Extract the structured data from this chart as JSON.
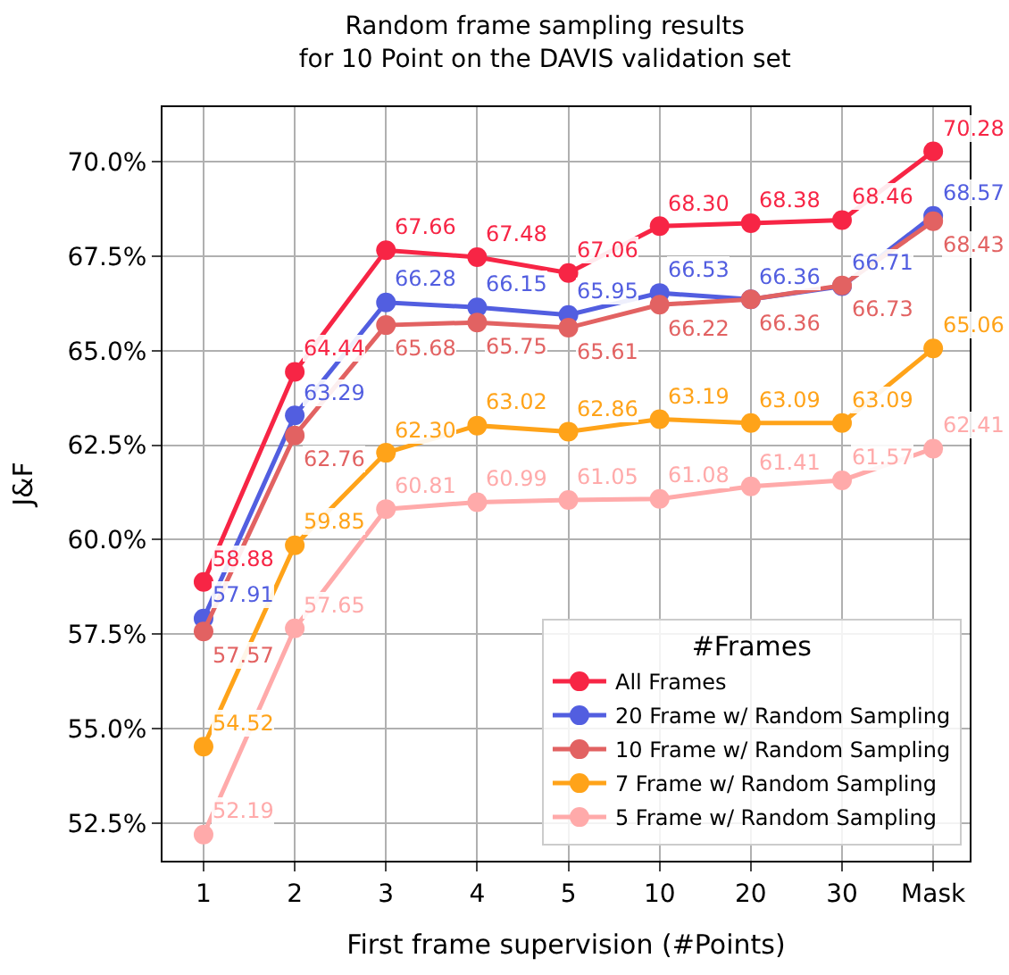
{
  "chart_data": {
    "type": "line",
    "title": "Random frame sampling results\nfor 10 Point on the DAVIS validation set",
    "xlabel": "First frame supervision (#Points)",
    "ylabel": "J&F",
    "categories": [
      "1",
      "2",
      "3",
      "4",
      "5",
      "10",
      "20",
      "30",
      "Mask"
    ],
    "series": [
      {
        "name": "All Frames",
        "color": "#f72545",
        "values": [
          58.88,
          64.44,
          67.66,
          67.48,
          67.06,
          68.3,
          68.38,
          68.46,
          70.28
        ],
        "value_labels": [
          "58.88",
          "64.44",
          "67.66",
          "67.48",
          "67.06",
          "68.30",
          "68.38",
          "68.46",
          "70.28"
        ]
      },
      {
        "name": "20 Frame w/ Random Sampling",
        "color": "#525ee0",
        "values": [
          57.91,
          63.29,
          66.28,
          66.15,
          65.95,
          66.53,
          66.36,
          66.71,
          68.57
        ],
        "value_labels": [
          "57.91",
          "63.29",
          "66.28",
          "66.15",
          "65.95",
          "66.53",
          "66.36",
          "66.71",
          "68.57"
        ]
      },
      {
        "name": "10 Frame w/ Random Sampling",
        "color": "#e26262",
        "values": [
          57.57,
          62.76,
          65.68,
          65.75,
          65.61,
          66.22,
          66.36,
          66.73,
          68.43
        ],
        "value_labels": [
          "57.57",
          "62.76",
          "65.68",
          "65.75",
          "65.61",
          "66.22",
          "66.36",
          "66.73",
          "68.43"
        ]
      },
      {
        "name": "7 Frame w/ Random Sampling",
        "color": "#ffa319",
        "values": [
          54.52,
          59.85,
          62.3,
          63.02,
          62.86,
          63.19,
          63.09,
          63.09,
          65.06
        ],
        "value_labels": [
          "54.52",
          "59.85",
          "62.30",
          "63.02",
          "62.86",
          "63.19",
          "63.09",
          "63.09",
          "65.06"
        ]
      },
      {
        "name": "5 Frame w/ Random Sampling",
        "color": "#ffaaaa",
        "values": [
          52.19,
          57.65,
          60.81,
          60.99,
          61.05,
          61.08,
          61.41,
          61.57,
          62.41
        ],
        "value_labels": [
          "52.19",
          "57.65",
          "60.81",
          "60.99",
          "61.05",
          "61.08",
          "61.41",
          "61.57",
          "62.41"
        ]
      }
    ],
    "ylim": [
      51.5,
      71.45
    ],
    "yticks": [
      {
        "value": 52.5,
        "label": "52.5%"
      },
      {
        "value": 55,
        "label": "55.0%"
      },
      {
        "value": 57.5,
        "label": "57.5%"
      },
      {
        "value": 60,
        "label": "60.0%"
      },
      {
        "value": 62.5,
        "label": "62.5%"
      },
      {
        "value": 65,
        "label": "65.0%"
      },
      {
        "value": 67.5,
        "label": "67.5%"
      },
      {
        "value": 70,
        "label": "70.0%"
      }
    ],
    "legend_title": "#Frames",
    "legend": "bottom right",
    "grid": true,
    "marker": "circle",
    "line_style": "solid"
  }
}
